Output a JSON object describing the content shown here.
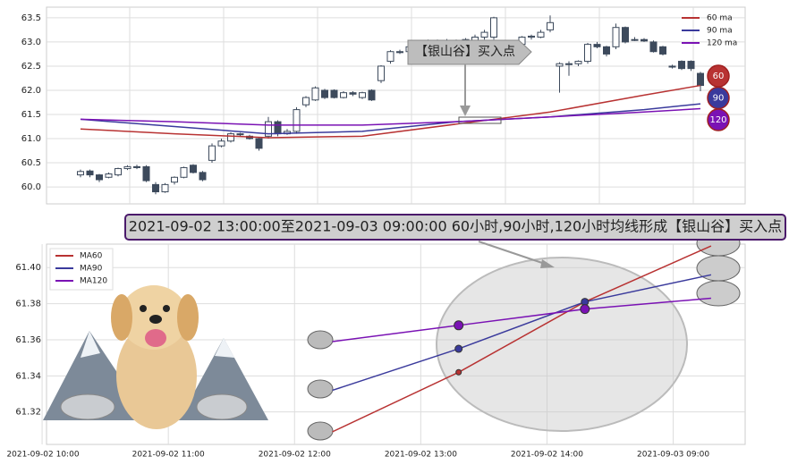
{
  "chart_data": [
    {
      "type": "candlestick",
      "open": [
        60.25,
        60.33,
        60.25,
        60.2,
        60.25,
        60.38,
        60.42,
        60.42,
        60.05,
        59.9,
        60.1,
        60.2,
        60.45,
        60.3,
        60.55,
        60.85,
        60.95,
        61.1,
        61.05,
        61.0,
        61.05,
        61.35,
        61.1,
        61.15,
        61.7,
        61.8,
        62.0,
        62.0,
        61.85,
        61.95,
        61.85,
        62.0,
        62.2,
        62.6,
        62.8,
        62.8,
        62.85,
        62.95,
        63.0,
        62.97,
        63.02,
        62.98,
        63.0,
        63.1,
        63.1,
        63.0,
        62.7,
        62.95,
        63.1,
        63.1,
        63.25,
        62.5,
        62.55,
        62.55,
        62.6,
        62.95,
        62.9,
        62.9,
        63.3,
        63.05,
        63.05,
        63.0,
        62.9,
        62.5,
        62.6,
        62.6,
        62.35
      ],
      "close": [
        60.32,
        60.25,
        60.15,
        60.27,
        60.38,
        60.42,
        60.4,
        60.13,
        59.9,
        60.05,
        60.2,
        60.4,
        60.3,
        60.15,
        60.85,
        60.95,
        61.1,
        61.08,
        61.0,
        60.8,
        61.35,
        61.1,
        61.15,
        61.6,
        61.85,
        62.05,
        61.85,
        61.85,
        61.95,
        61.92,
        61.95,
        61.8,
        62.5,
        62.8,
        62.78,
        62.9,
        62.95,
        63.0,
        62.97,
        63.02,
        62.98,
        63.05,
        63.1,
        63.2,
        63.5,
        62.85,
        62.95,
        63.1,
        63.12,
        63.2,
        63.4,
        62.55,
        62.55,
        62.6,
        62.95,
        62.9,
        62.75,
        63.3,
        63.0,
        63.05,
        63.02,
        62.8,
        62.75,
        62.48,
        62.45,
        62.45,
        62.1
      ],
      "high": [
        60.36,
        60.36,
        60.27,
        60.3,
        60.4,
        60.45,
        60.46,
        60.45,
        60.1,
        60.08,
        60.22,
        60.42,
        60.47,
        60.33,
        60.9,
        61.0,
        61.13,
        61.12,
        61.08,
        61.03,
        61.45,
        61.38,
        61.2,
        61.65,
        61.88,
        62.08,
        62.03,
        62.02,
        61.98,
        61.98,
        61.97,
        62.02,
        62.52,
        62.83,
        62.84,
        62.95,
        63.0,
        63.05,
        63.05,
        63.06,
        63.05,
        63.08,
        63.15,
        63.25,
        63.52,
        63.03,
        62.98,
        63.12,
        63.15,
        63.25,
        63.55,
        62.58,
        62.6,
        62.62,
        62.98,
        63.0,
        62.92,
        63.38,
        63.32,
        63.1,
        63.08,
        63.03,
        62.92,
        62.53,
        62.62,
        62.62,
        62.38
      ],
      "low": [
        60.2,
        60.2,
        60.1,
        60.18,
        60.22,
        60.35,
        60.37,
        60.1,
        59.85,
        59.88,
        60.05,
        60.18,
        60.28,
        60.12,
        60.5,
        60.82,
        60.92,
        61.05,
        60.98,
        60.75,
        61.0,
        61.05,
        61.08,
        61.1,
        61.65,
        61.78,
        61.82,
        61.83,
        61.83,
        61.88,
        61.82,
        61.78,
        62.15,
        62.55,
        62.75,
        62.77,
        62.82,
        62.9,
        62.93,
        62.94,
        62.9,
        62.95,
        62.97,
        63.05,
        63.05,
        62.8,
        62.65,
        62.9,
        63.05,
        63.08,
        63.2,
        61.95,
        62.3,
        62.5,
        62.55,
        62.87,
        62.7,
        62.85,
        62.97,
        63.02,
        63.0,
        62.78,
        62.72,
        62.45,
        62.42,
        62.4,
        61.98
      ],
      "series": [
        {
          "name": "60 ma",
          "badge": "60",
          "color": "#b83232",
          "x": [
            0,
            10,
            20,
            30,
            40,
            50,
            60,
            66
          ],
          "values": [
            61.2,
            61.1,
            61.02,
            61.05,
            61.3,
            61.55,
            61.9,
            62.1
          ]
        },
        {
          "name": "90 ma",
          "badge": "90",
          "color": "#3a3a9c",
          "x": [
            0,
            10,
            20,
            30,
            40,
            50,
            60,
            66
          ],
          "values": [
            61.4,
            61.25,
            61.1,
            61.15,
            61.35,
            61.45,
            61.6,
            61.72
          ]
        },
        {
          "name": "120 ma",
          "badge": "120",
          "color": "#7a12b4",
          "x": [
            0,
            10,
            20,
            30,
            40,
            50,
            60,
            66
          ],
          "values": [
            61.4,
            61.35,
            61.28,
            61.28,
            61.35,
            61.45,
            61.55,
            61.62
          ]
        }
      ],
      "ylim": [
        59.65,
        63.72
      ],
      "yticks": [
        {
          "value": 60,
          "label": "60.0"
        },
        60.5,
        {
          "value": 61,
          "label": "61.0"
        },
        61.5,
        {
          "value": 62,
          "label": "62.0"
        },
        62.5,
        {
          "value": 63,
          "label": "63.0"
        },
        63.5
      ],
      "annotation": "【银山谷】买入点",
      "grid": true
    },
    {
      "type": "line",
      "banner": "2021-09-02 13:00:00至2021-09-03 09:00:00 60小时,90小时,120小时均线形成【银山谷】买入点",
      "series": [
        {
          "name": "MA60",
          "color": "#b83232",
          "x": [
            2.3,
            3.3,
            4.3,
            5.3
          ],
          "values": [
            61.309,
            61.342,
            61.381,
            61.412
          ]
        },
        {
          "name": "MA90",
          "color": "#3a3a9c",
          "x": [
            2.3,
            3.3,
            4.3,
            5.3
          ],
          "values": [
            61.332,
            61.355,
            61.381,
            61.396
          ]
        },
        {
          "name": "MA120",
          "color": "#7a12b4",
          "x": [
            2.3,
            3.3,
            4.3,
            5.3
          ],
          "values": [
            61.359,
            61.368,
            61.377,
            61.383
          ]
        }
      ],
      "xlim": [
        0.035,
        5.57
      ],
      "xticks": [
        {
          "value": 0,
          "label": "2021-09-02 10:00"
        },
        {
          "value": 1,
          "label": "2021-09-02 11:00"
        },
        {
          "value": 2,
          "label": "2021-09-02 12:00"
        },
        {
          "value": 3,
          "label": "2021-09-02 13:00"
        },
        {
          "value": 4,
          "label": "2021-09-02 14:00"
        },
        {
          "value": 5,
          "label": "2021-09-03 09:00"
        }
      ],
      "ylim": [
        61.302,
        61.413
      ],
      "yticks": [
        {
          "value": 61.32,
          "label": "61.32"
        },
        {
          "value": 61.34,
          "label": "61.34"
        },
        {
          "value": 61.36,
          "label": "61.36"
        },
        {
          "value": 61.38,
          "label": "61.38"
        },
        {
          "value": 61.4,
          "label": "61.40"
        }
      ],
      "grid": true
    }
  ]
}
